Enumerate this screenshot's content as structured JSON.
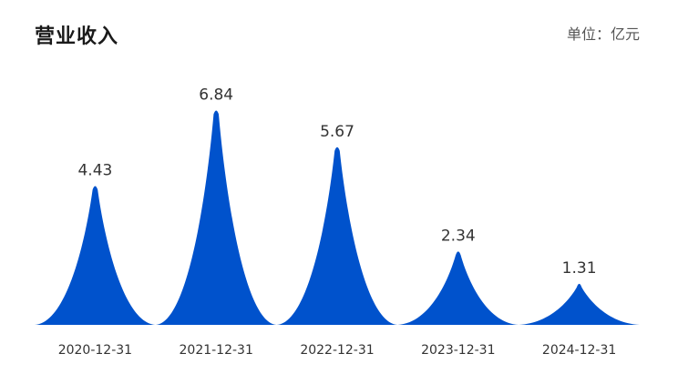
{
  "header": {
    "title": "营业收入",
    "unit": "单位：亿元"
  },
  "colors": {
    "bar": "#0052cc"
  },
  "chart_data": {
    "type": "area",
    "title": "营业收入",
    "unit": "单位：亿元",
    "categories": [
      "2020-12-31",
      "2021-12-31",
      "2022-12-31",
      "2023-12-31",
      "2024-12-31"
    ],
    "values": [
      4.43,
      6.84,
      5.67,
      2.34,
      1.31
    ],
    "value_labels": [
      "4.43",
      "6.84",
      "5.67",
      "2.34",
      "1.31"
    ],
    "ylim": [
      0,
      7.5
    ],
    "grid": false,
    "legend": "none"
  }
}
